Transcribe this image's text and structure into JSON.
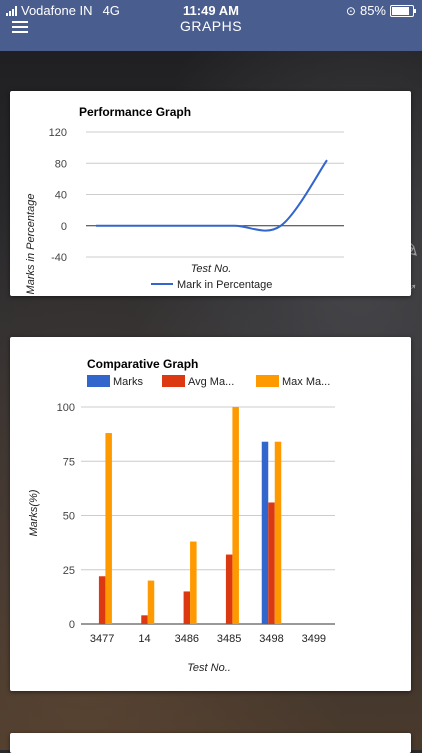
{
  "status_bar": {
    "carrier": "Vodafone IN",
    "network": "4G",
    "time": "11:49 AM",
    "battery": "85%",
    "battery_level": 0.85
  },
  "header": {
    "title": "GRAPHS",
    "menu_icon": "hamburger-icon"
  },
  "colors": {
    "header": "#4a5d8f",
    "marks": "#3366cc",
    "avg": "#dc3912",
    "max": "#ff9900"
  },
  "performance_chart": {
    "title": "Performance Graph",
    "ylabel": "Marks in Percentage",
    "xlabel": "Test No.",
    "legend": "Mark in Percentage",
    "yticks": [
      "120",
      "80",
      "40",
      "0",
      "-40"
    ]
  },
  "comparative_chart": {
    "title": "Comparative Graph",
    "ylabel": "Marks(%)",
    "xlabel": "Test No..",
    "legend": [
      "Marks",
      "Avg Ma...",
      "Max Ma..."
    ],
    "yticks": [
      "100",
      "75",
      "50",
      "25",
      "0"
    ],
    "categories": [
      "3477",
      "14",
      "3486",
      "3485",
      "3498",
      "3499"
    ]
  },
  "chart_data": [
    {
      "type": "line",
      "title": "Performance Graph",
      "xlabel": "Test No.",
      "ylabel": "Marks in Percentage",
      "ylim": [
        -40,
        120
      ],
      "series": [
        {
          "name": "Mark in Percentage",
          "x": [
            0,
            1,
            2,
            3,
            4,
            5
          ],
          "values": [
            0,
            0,
            0,
            0,
            0,
            84
          ]
        }
      ]
    },
    {
      "type": "bar",
      "title": "Comparative Graph",
      "xlabel": "Test No..",
      "ylabel": "Marks(%)",
      "ylim": [
        0,
        100
      ],
      "categories": [
        "3477",
        "14",
        "3486",
        "3485",
        "3498",
        "3499"
      ],
      "series": [
        {
          "name": "Marks",
          "values": [
            0,
            0,
            0,
            0,
            84,
            0
          ]
        },
        {
          "name": "Avg Ma...",
          "values": [
            22,
            4,
            15,
            32,
            56,
            0
          ]
        },
        {
          "name": "Max Ma...",
          "values": [
            88,
            20,
            38,
            100,
            84,
            0
          ]
        }
      ]
    }
  ]
}
